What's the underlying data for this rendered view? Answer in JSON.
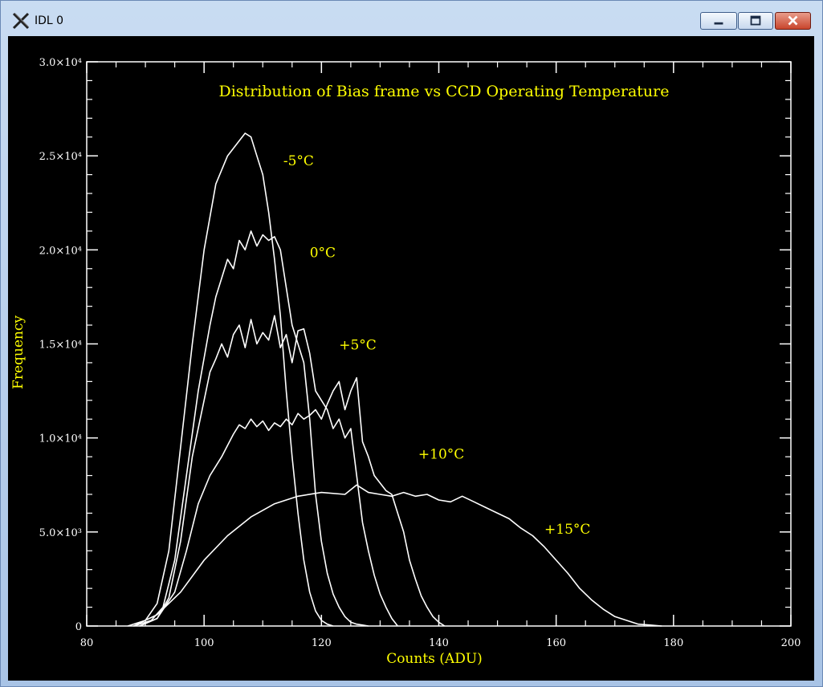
{
  "window": {
    "title": "IDL 0"
  },
  "chart_data": {
    "type": "line",
    "title": "Distribution of Bias frame vs CCD Operating Temperature",
    "xlabel": "Counts (ADU)",
    "ylabel": "Frequency",
    "xlim": [
      80,
      200
    ],
    "ylim": [
      0,
      30000
    ],
    "x_ticks": [
      80,
      100,
      120,
      140,
      160,
      180,
      200
    ],
    "x_tick_labels": [
      "80",
      "100",
      "120",
      "140",
      "160",
      "180",
      "200"
    ],
    "y_ticks": [
      0,
      5000,
      10000,
      15000,
      20000,
      25000,
      30000
    ],
    "y_tick_labels": [
      "0",
      "5.0×10³",
      "1.0×10⁴",
      "1.5×10⁴",
      "2.0×10⁴",
      "2.5×10⁴",
      "3.0×10⁴"
    ],
    "grid": false,
    "series": [
      {
        "name": "-5°C",
        "x": [
          87,
          90,
          92,
          94,
          96,
          98,
          100,
          102,
          104,
          106,
          107,
          108,
          109,
          110,
          111,
          112,
          113,
          114,
          115,
          116,
          117,
          118,
          119,
          120,
          121,
          122
        ],
        "y": [
          0,
          300,
          1200,
          4000,
          9500,
          15000,
          20000,
          23500,
          25000,
          25800,
          26200,
          26000,
          25000,
          24000,
          22000,
          19500,
          16500,
          12500,
          9000,
          6000,
          3500,
          1800,
          800,
          300,
          100,
          0
        ],
        "label_x": 113.5,
        "label_y": 24500
      },
      {
        "name": "0°C",
        "x": [
          88,
          91,
          93,
          95,
          97,
          99,
          101,
          102,
          103,
          104,
          105,
          106,
          107,
          108,
          109,
          110,
          111,
          112,
          113,
          114,
          115,
          116,
          117,
          118,
          119,
          120,
          121,
          122,
          123,
          124,
          125,
          126,
          127,
          128
        ],
        "y": [
          0,
          300,
          1000,
          3500,
          8000,
          12500,
          16000,
          17500,
          18500,
          19500,
          19000,
          20500,
          20000,
          21000,
          20200,
          20800,
          20500,
          20700,
          20000,
          18000,
          16000,
          15000,
          14000,
          11000,
          7000,
          4500,
          2800,
          1700,
          1000,
          500,
          200,
          100,
          50,
          0
        ],
        "label_x": 118,
        "label_y": 19600
      },
      {
        "name": "+5°C",
        "x": [
          89,
          92,
          94,
          96,
          98,
          100,
          101,
          102,
          103,
          104,
          105,
          106,
          107,
          108,
          109,
          110,
          111,
          112,
          113,
          114,
          115,
          116,
          117,
          118,
          119,
          120,
          121,
          122,
          123,
          124,
          125,
          126,
          127,
          128,
          129,
          130,
          131,
          132,
          133
        ],
        "y": [
          0,
          400,
          1500,
          4500,
          9000,
          12000,
          13500,
          14200,
          15000,
          14300,
          15500,
          16000,
          14800,
          16300,
          15000,
          15600,
          15200,
          16500,
          14800,
          15500,
          14000,
          15700,
          15800,
          14500,
          12500,
          12000,
          11500,
          10500,
          11000,
          10000,
          10500,
          8000,
          5500,
          4000,
          2700,
          1700,
          1000,
          400,
          0
        ],
        "label_x": 123,
        "label_y": 14700
      },
      {
        "name": "+10°C",
        "x": [
          89,
          92,
          95,
          97,
          99,
          101,
          102,
          103,
          104,
          105,
          106,
          107,
          108,
          109,
          110,
          111,
          112,
          113,
          114,
          115,
          116,
          117,
          118,
          119,
          120,
          121,
          122,
          123,
          124,
          125,
          126,
          127,
          128,
          129,
          130,
          131,
          132,
          133,
          134,
          135,
          136,
          137,
          138,
          139,
          140,
          141
        ],
        "y": [
          0,
          400,
          1800,
          4000,
          6500,
          8000,
          8500,
          9000,
          9600,
          10200,
          10700,
          10500,
          11000,
          10600,
          10900,
          10400,
          10800,
          10600,
          11000,
          10700,
          11300,
          11000,
          11200,
          11500,
          11000,
          11800,
          12500,
          13000,
          11500,
          12500,
          13200,
          9800,
          9000,
          8000,
          7600,
          7200,
          7000,
          6000,
          5000,
          3500,
          2500,
          1600,
          1000,
          500,
          200,
          0
        ],
        "label_x": 136.5,
        "label_y": 8900
      },
      {
        "name": "+15°C",
        "x": [
          88,
          92,
          96,
          100,
          104,
          108,
          112,
          116,
          120,
          124,
          126,
          128,
          130,
          132,
          134,
          136,
          138,
          140,
          142,
          144,
          146,
          148,
          150,
          152,
          154,
          156,
          158,
          160,
          162,
          164,
          166,
          168,
          170,
          172,
          174,
          176,
          178
        ],
        "y": [
          0,
          600,
          1800,
          3500,
          4800,
          5800,
          6500,
          6900,
          7100,
          7000,
          7500,
          7100,
          7000,
          6900,
          7100,
          6900,
          7000,
          6700,
          6600,
          6900,
          6600,
          6300,
          6000,
          5700,
          5200,
          4800,
          4200,
          3500,
          2800,
          2000,
          1400,
          900,
          500,
          300,
          100,
          50,
          0
        ],
        "label_x": 158,
        "label_y": 4900
      }
    ]
  }
}
